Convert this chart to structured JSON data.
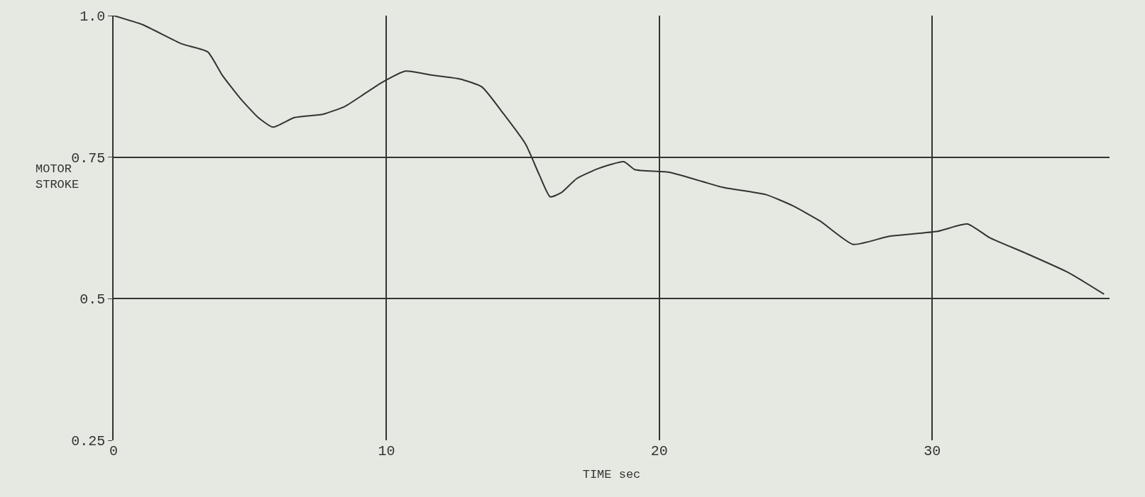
{
  "chart_data": {
    "type": "line",
    "xlabel": "TIME sec",
    "ylabel": "MOTOR\nSTROKE",
    "x": [
      0,
      1.06,
      2.5,
      3.45,
      3.98,
      4.64,
      5.3,
      5.84,
      6.63,
      7.69,
      8.49,
      9.8,
      10.7,
      11.64,
      12.7,
      13.5,
      14.3,
      15.1,
      15.6,
      16.0,
      16.4,
      16.97,
      17.77,
      18.7,
      19.1,
      20.4,
      22.3,
      23.9,
      24.9,
      25.9,
      27.1,
      28.4,
      30.2,
      31.3,
      32.1,
      33.4,
      35.0,
      36.3
    ],
    "series": [
      {
        "color": "#333333",
        "values": [
          1.0,
          0.984,
          0.95,
          0.936,
          0.895,
          0.854,
          0.82,
          0.803,
          0.82,
          0.826,
          0.84,
          0.881,
          0.902,
          0.895,
          0.888,
          0.874,
          0.826,
          0.773,
          0.719,
          0.68,
          0.687,
          0.712,
          0.73,
          0.742,
          0.728,
          0.723,
          0.697,
          0.684,
          0.664,
          0.637,
          0.596,
          0.61,
          0.619,
          0.632,
          0.608,
          0.581,
          0.546,
          0.508
        ]
      }
    ],
    "xlim": [
      0,
      36.5
    ],
    "ylim": [
      0.25,
      1.0
    ],
    "xticks": [
      0,
      10,
      20,
      30
    ],
    "yticks": [
      {
        "value": 1.0,
        "label": "1.0"
      },
      0.75,
      0.5,
      0.25
    ],
    "grid": true,
    "marker": "none",
    "line_style": "solid"
  }
}
